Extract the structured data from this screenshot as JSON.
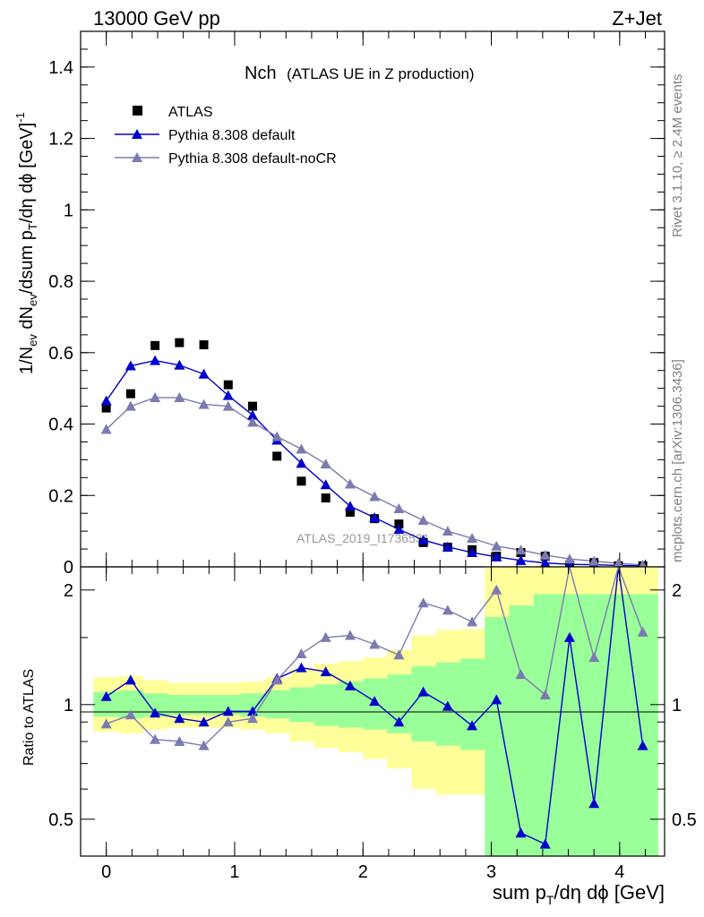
{
  "header": {
    "left": "13000 GeV pp",
    "right": "Z+Jet"
  },
  "side_labels": {
    "top": "Rivet 3.1.10, ≥ 2.4M events",
    "bottom": "mcplots.cern.ch [arXiv:1306.3436]"
  },
  "chart_data": [
    {
      "type": "line",
      "panel": "main",
      "title": "Nch",
      "subtitle": "(ATLAS UE in Z production)",
      "ylabel": "1/N_ev dN_ev/dsum p_T/dη dϕ [GeV]^-1",
      "ylim": [
        0,
        1.5
      ],
      "xlim": [
        -0.2,
        4.35
      ],
      "yticks": [
        0,
        0.2,
        0.4,
        0.6,
        0.8,
        1,
        1.2,
        1.4
      ],
      "ytick_labels": [
        "0",
        "0.2",
        "0.4",
        "0.6",
        "0.8",
        "1",
        "1.2",
        "1.4"
      ],
      "watermark": "ATLAS_2019_I1736531",
      "legend_position": "top-left",
      "series": [
        {
          "name": "ATLAS",
          "color": "#000000",
          "marker": "square",
          "x": [
            0,
            0.19,
            0.38,
            0.57,
            0.76,
            0.95,
            1.14,
            1.33,
            1.52,
            1.71,
            1.9,
            2.09,
            2.28,
            2.47,
            2.66,
            2.85,
            3.04,
            3.23,
            3.42,
            3.61,
            3.8,
            3.99,
            4.18
          ],
          "y": [
            0.445,
            0.485,
            0.62,
            0.628,
            0.622,
            0.51,
            0.45,
            0.31,
            0.24,
            0.193,
            0.153,
            0.135,
            0.12,
            0.068,
            0.055,
            0.048,
            0.03,
            0.04,
            0.03,
            0.005,
            0.012,
            0.003,
            0.003
          ]
        },
        {
          "name": "Pythia 8.308 default",
          "color": "#0000cc",
          "marker": "triangle",
          "x": [
            0,
            0.19,
            0.38,
            0.57,
            0.76,
            0.95,
            1.14,
            1.33,
            1.52,
            1.71,
            1.9,
            2.09,
            2.28,
            2.47,
            2.66,
            2.85,
            3.04,
            3.23,
            3.42,
            3.61,
            3.8,
            3.99,
            4.18
          ],
          "y": [
            0.465,
            0.563,
            0.578,
            0.565,
            0.54,
            0.48,
            0.425,
            0.355,
            0.29,
            0.23,
            0.17,
            0.138,
            0.105,
            0.075,
            0.056,
            0.04,
            0.028,
            0.018,
            0.011,
            0.007,
            0.006,
            0.004,
            0.003
          ]
        },
        {
          "name": "Pythia 8.308 default-noCR",
          "color": "#7b7bb0",
          "marker": "triangle",
          "x": [
            0,
            0.19,
            0.38,
            0.57,
            0.76,
            0.95,
            1.14,
            1.33,
            1.52,
            1.71,
            1.9,
            2.09,
            2.28,
            2.47,
            2.66,
            2.85,
            3.04,
            3.23,
            3.42,
            3.61,
            3.8,
            3.99,
            4.18
          ],
          "y": [
            0.385,
            0.45,
            0.474,
            0.474,
            0.455,
            0.45,
            0.405,
            0.365,
            0.33,
            0.288,
            0.232,
            0.197,
            0.163,
            0.13,
            0.1,
            0.08,
            0.058,
            0.047,
            0.033,
            0.022,
            0.016,
            0.01,
            0.005
          ]
        }
      ]
    },
    {
      "type": "line",
      "panel": "ratio",
      "ylabel": "Ratio to ATLAS",
      "ylim": [
        0.4,
        2.3
      ],
      "scale": "log",
      "reference_y": 1,
      "xticks": [
        0,
        1,
        2,
        3,
        4
      ],
      "xtick_labels": [
        "0",
        "1",
        "2",
        "3",
        "4"
      ],
      "yticks": [
        0.5,
        1,
        2
      ],
      "ytick_labels": [
        "0.5",
        "1",
        "2"
      ],
      "xlabel": "sum p_T/dη dϕ [GeV]",
      "bands": {
        "bin_edges": [
          -0.1,
          0.1,
          0.29,
          0.48,
          0.67,
          0.86,
          1.05,
          1.24,
          1.43,
          1.62,
          1.81,
          2.0,
          2.19,
          2.38,
          2.57,
          2.76,
          2.95,
          3.14,
          3.33,
          3.52,
          3.71,
          3.9,
          4.09,
          4.3
        ],
        "yellow_low": [
          0.85,
          0.84,
          0.86,
          0.87,
          0.87,
          0.87,
          0.86,
          0.84,
          0.8,
          0.77,
          0.75,
          0.72,
          0.68,
          0.6,
          0.58,
          0.58,
          0.4,
          0.4,
          0.4,
          0.4,
          0.4,
          0.4,
          0.4
        ],
        "yellow_high": [
          1.18,
          1.19,
          1.16,
          1.14,
          1.14,
          1.14,
          1.15,
          1.18,
          1.24,
          1.28,
          1.3,
          1.33,
          1.39,
          1.52,
          1.57,
          1.58,
          2.3,
          2.3,
          2.3,
          2.3,
          2.3,
          2.3,
          2.3
        ],
        "green_low": [
          0.93,
          0.92,
          0.93,
          0.94,
          0.94,
          0.94,
          0.93,
          0.92,
          0.9,
          0.88,
          0.87,
          0.86,
          0.84,
          0.8,
          0.78,
          0.76,
          0.4,
          0.4,
          0.4,
          0.4,
          0.4,
          0.4,
          0.4
        ],
        "green_high": [
          1.08,
          1.09,
          1.07,
          1.06,
          1.06,
          1.06,
          1.07,
          1.09,
          1.11,
          1.13,
          1.15,
          1.17,
          1.2,
          1.26,
          1.29,
          1.32,
          1.7,
          1.82,
          1.95,
          1.95,
          1.95,
          1.95,
          1.95
        ],
        "colors": {
          "yellow": "#ffff99",
          "green": "#99ff99"
        }
      },
      "series": [
        {
          "name": "Pythia 8.308 default",
          "color": "#0000cc",
          "x": [
            0,
            0.19,
            0.38,
            0.57,
            0.76,
            0.95,
            1.14,
            1.33,
            1.52,
            1.71,
            1.9,
            2.09,
            2.28,
            2.47,
            2.66,
            2.85,
            3.04,
            3.23,
            3.42,
            3.61,
            3.8,
            3.99,
            4.18
          ],
          "y": [
            1.05,
            1.16,
            0.95,
            0.92,
            0.9,
            0.96,
            0.96,
            1.17,
            1.25,
            1.22,
            1.12,
            1.02,
            0.9,
            1.08,
            0.99,
            0.88,
            1.03,
            0.46,
            0.43,
            1.5,
            0.55,
            2.5,
            0.78
          ]
        },
        {
          "name": "Pythia 8.308 default-noCR",
          "color": "#7b7bb0",
          "x": [
            0,
            0.19,
            0.38,
            0.57,
            0.76,
            0.95,
            1.14,
            1.33,
            1.52,
            1.71,
            1.9,
            2.09,
            2.28,
            2.47,
            2.66,
            2.85,
            3.04,
            3.23,
            3.42,
            3.61,
            3.8,
            3.99,
            4.18
          ],
          "y": [
            0.89,
            0.94,
            0.81,
            0.8,
            0.78,
            0.9,
            0.92,
            1.16,
            1.36,
            1.5,
            1.52,
            1.44,
            1.35,
            1.85,
            1.77,
            1.65,
            2.0,
            1.2,
            1.06,
            2.6,
            1.33,
            2.6,
            1.55
          ]
        }
      ]
    }
  ]
}
